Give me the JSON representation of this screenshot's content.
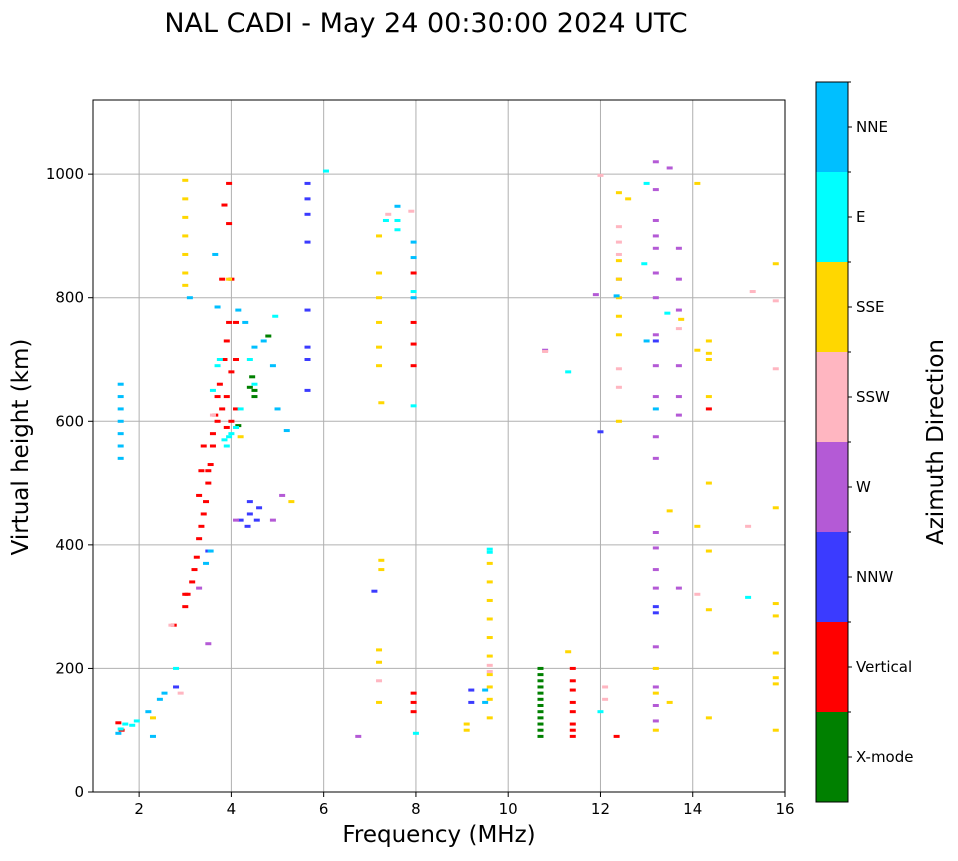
{
  "chart_data": {
    "type": "scatter",
    "title": "NAL CADI - May 24 00:30:00 2024 UTC",
    "xlabel": "Frequency (MHz)",
    "ylabel": "Virtual height (km)",
    "xlim": [
      1,
      16
    ],
    "ylim": [
      0,
      1120
    ],
    "xticks": [
      2,
      4,
      6,
      8,
      10,
      12,
      14,
      16
    ],
    "yticks": [
      0,
      200,
      400,
      600,
      800,
      1000
    ],
    "grid": true,
    "colorbar": {
      "label": "Azimuth Direction",
      "categories": [
        {
          "name": "X-mode",
          "color": "#008000"
        },
        {
          "name": "Vertical",
          "color": "#ff0000"
        },
        {
          "name": "NNW",
          "color": "#3b3bff"
        },
        {
          "name": "W",
          "color": "#b45ad6"
        },
        {
          "name": "SSW",
          "color": "#ffb6c1"
        },
        {
          "name": "SSE",
          "color": "#ffd700"
        },
        {
          "name": "E",
          "color": "#00ffff"
        },
        {
          "name": "NNE",
          "color": "#00bfff"
        }
      ]
    },
    "series": [
      {
        "name": "X-mode",
        "points": [
          [
            10.7,
            90
          ],
          [
            10.7,
            100
          ],
          [
            10.7,
            110
          ],
          [
            10.7,
            120
          ],
          [
            10.7,
            130
          ],
          [
            10.7,
            140
          ],
          [
            10.7,
            150
          ],
          [
            10.7,
            160
          ],
          [
            10.7,
            170
          ],
          [
            10.7,
            180
          ],
          [
            10.7,
            190
          ],
          [
            10.7,
            200
          ],
          [
            4.15,
            593
          ],
          [
            4.5,
            650
          ],
          [
            4.45,
            672
          ],
          [
            4.4,
            655
          ],
          [
            4.8,
            738
          ],
          [
            4.5,
            640
          ]
        ]
      },
      {
        "name": "Vertical",
        "points": [
          [
            1.55,
            112
          ],
          [
            1.62,
            100
          ],
          [
            3.0,
            300
          ],
          [
            3.0,
            320
          ],
          [
            3.15,
            340
          ],
          [
            3.2,
            360
          ],
          [
            3.25,
            380
          ],
          [
            3.3,
            410
          ],
          [
            3.35,
            430
          ],
          [
            3.4,
            450
          ],
          [
            3.45,
            470
          ],
          [
            3.5,
            500
          ],
          [
            3.55,
            530
          ],
          [
            3.6,
            560
          ],
          [
            3.7,
            600
          ],
          [
            3.8,
            620
          ],
          [
            3.9,
            640
          ],
          [
            4.0,
            680
          ],
          [
            4.1,
            700
          ],
          [
            3.7,
            640
          ],
          [
            3.75,
            660
          ],
          [
            3.85,
            700
          ],
          [
            3.9,
            730
          ],
          [
            3.95,
            760
          ],
          [
            4.1,
            760
          ],
          [
            3.8,
            830
          ],
          [
            4.0,
            830
          ],
          [
            3.95,
            985
          ],
          [
            3.95,
            920
          ],
          [
            3.85,
            950
          ],
          [
            3.3,
            480
          ],
          [
            3.35,
            520
          ],
          [
            3.4,
            560
          ],
          [
            3.6,
            580
          ],
          [
            3.65,
            610
          ],
          [
            4.0,
            600
          ],
          [
            4.1,
            620
          ],
          [
            3.9,
            590
          ],
          [
            7.95,
            130
          ],
          [
            7.95,
            145
          ],
          [
            7.95,
            160
          ],
          [
            7.95,
            690
          ],
          [
            7.95,
            760
          ],
          [
            7.95,
            840
          ],
          [
            7.95,
            725
          ],
          [
            11.4,
            90
          ],
          [
            11.4,
            100
          ],
          [
            11.4,
            110
          ],
          [
            11.4,
            130
          ],
          [
            11.4,
            145
          ],
          [
            11.4,
            165
          ],
          [
            11.4,
            180
          ],
          [
            11.4,
            200
          ],
          [
            12.35,
            90
          ],
          [
            14.35,
            620
          ],
          [
            2.75,
            270
          ],
          [
            3.05,
            320
          ],
          [
            3.5,
            520
          ]
        ]
      },
      {
        "name": "NNW",
        "points": [
          [
            5.65,
            650
          ],
          [
            5.65,
            700
          ],
          [
            5.65,
            720
          ],
          [
            5.65,
            780
          ],
          [
            5.65,
            890
          ],
          [
            5.65,
            935
          ],
          [
            5.65,
            960
          ],
          [
            5.65,
            985
          ],
          [
            4.4,
            450
          ],
          [
            4.4,
            470
          ],
          [
            4.2,
            440
          ],
          [
            4.6,
            460
          ],
          [
            4.55,
            440
          ],
          [
            4.35,
            430
          ],
          [
            9.2,
            145
          ],
          [
            9.2,
            165
          ],
          [
            12.0,
            583
          ],
          [
            13.2,
            730
          ],
          [
            13.2,
            290
          ],
          [
            13.2,
            300
          ],
          [
            3.5,
            390
          ],
          [
            7.1,
            325
          ],
          [
            2.8,
            170
          ]
        ]
      },
      {
        "name": "W",
        "points": [
          [
            3.5,
            240
          ],
          [
            3.3,
            330
          ],
          [
            4.1,
            440
          ],
          [
            4.9,
            440
          ],
          [
            5.1,
            480
          ],
          [
            6.75,
            90
          ],
          [
            11.9,
            805
          ],
          [
            13.2,
            420
          ],
          [
            13.2,
            395
          ],
          [
            13.2,
            360
          ],
          [
            13.2,
            330
          ],
          [
            13.2,
            235
          ],
          [
            13.2,
            170
          ],
          [
            13.2,
            140
          ],
          [
            13.2,
            115
          ],
          [
            13.2,
            575
          ],
          [
            13.2,
            540
          ],
          [
            13.2,
            640
          ],
          [
            13.2,
            690
          ],
          [
            13.2,
            740
          ],
          [
            13.2,
            800
          ],
          [
            13.2,
            840
          ],
          [
            13.2,
            880
          ],
          [
            13.2,
            900
          ],
          [
            13.2,
            925
          ],
          [
            13.2,
            975
          ],
          [
            13.2,
            1020
          ],
          [
            13.5,
            1010
          ],
          [
            13.7,
            880
          ],
          [
            13.7,
            830
          ],
          [
            13.7,
            780
          ],
          [
            13.7,
            690
          ],
          [
            13.7,
            640
          ],
          [
            13.7,
            610
          ],
          [
            13.7,
            330
          ],
          [
            10.8,
            715
          ],
          [
            12.4,
            830
          ]
        ]
      },
      {
        "name": "SSW",
        "points": [
          [
            2.7,
            270
          ],
          [
            2.9,
            160
          ],
          [
            3.6,
            610
          ],
          [
            7.9,
            940
          ],
          [
            7.4,
            935
          ],
          [
            10.8,
            713
          ],
          [
            12.4,
            870
          ],
          [
            12.4,
            890
          ],
          [
            12.4,
            915
          ],
          [
            12.4,
            655
          ],
          [
            12.4,
            685
          ],
          [
            12.1,
            150
          ],
          [
            12.1,
            170
          ],
          [
            13.7,
            750
          ],
          [
            14.1,
            320
          ],
          [
            15.2,
            430
          ],
          [
            15.3,
            810
          ],
          [
            15.8,
            795
          ],
          [
            15.8,
            685
          ],
          [
            12.0,
            998
          ],
          [
            9.6,
            195
          ],
          [
            9.6,
            205
          ],
          [
            7.2,
            180
          ]
        ]
      },
      {
        "name": "SSE",
        "points": [
          [
            3.0,
            840
          ],
          [
            3.0,
            870
          ],
          [
            3.0,
            900
          ],
          [
            3.0,
            930
          ],
          [
            3.0,
            960
          ],
          [
            3.0,
            990
          ],
          [
            3.0,
            820
          ],
          [
            7.2,
            690
          ],
          [
            7.2,
            720
          ],
          [
            7.2,
            760
          ],
          [
            7.2,
            800
          ],
          [
            7.2,
            840
          ],
          [
            7.2,
            900
          ],
          [
            7.25,
            630
          ],
          [
            7.25,
            375
          ],
          [
            7.25,
            360
          ],
          [
            7.2,
            230
          ],
          [
            7.2,
            210
          ],
          [
            7.2,
            145
          ],
          [
            9.1,
            110
          ],
          [
            9.1,
            100
          ],
          [
            9.6,
            150
          ],
          [
            9.6,
            170
          ],
          [
            9.6,
            190
          ],
          [
            9.6,
            220
          ],
          [
            9.6,
            250
          ],
          [
            9.6,
            280
          ],
          [
            9.6,
            310
          ],
          [
            9.6,
            340
          ],
          [
            9.6,
            370
          ],
          [
            9.6,
            120
          ],
          [
            11.3,
            227
          ],
          [
            12.4,
            970
          ],
          [
            12.4,
            860
          ],
          [
            12.4,
            830
          ],
          [
            12.4,
            800
          ],
          [
            12.4,
            770
          ],
          [
            12.4,
            740
          ],
          [
            12.4,
            600
          ],
          [
            12.6,
            960
          ],
          [
            13.2,
            200
          ],
          [
            13.2,
            160
          ],
          [
            13.2,
            100
          ],
          [
            13.5,
            455
          ],
          [
            13.5,
            145
          ],
          [
            14.1,
            985
          ],
          [
            14.1,
            715
          ],
          [
            14.1,
            430
          ],
          [
            14.35,
            730
          ],
          [
            14.35,
            710
          ],
          [
            14.35,
            700
          ],
          [
            14.35,
            640
          ],
          [
            14.35,
            500
          ],
          [
            14.35,
            390
          ],
          [
            14.35,
            295
          ],
          [
            14.35,
            120
          ],
          [
            15.8,
            855
          ],
          [
            15.8,
            460
          ],
          [
            15.8,
            305
          ],
          [
            15.8,
            285
          ],
          [
            15.8,
            225
          ],
          [
            15.8,
            185
          ],
          [
            15.8,
            175
          ],
          [
            15.8,
            100
          ],
          [
            13.75,
            765
          ],
          [
            2.3,
            120
          ],
          [
            5.3,
            470
          ],
          [
            4.2,
            575
          ],
          [
            3.95,
            830
          ]
        ]
      },
      {
        "name": "E",
        "points": [
          [
            1.6,
            102
          ],
          [
            1.7,
            110
          ],
          [
            1.85,
            108
          ],
          [
            1.95,
            115
          ],
          [
            3.9,
            560
          ],
          [
            3.95,
            575
          ],
          [
            4.0,
            580
          ],
          [
            3.85,
            570
          ],
          [
            4.1,
            590
          ],
          [
            4.2,
            620
          ],
          [
            4.4,
            700
          ],
          [
            4.5,
            660
          ],
          [
            3.6,
            650
          ],
          [
            3.7,
            690
          ],
          [
            3.75,
            700
          ],
          [
            9.6,
            393
          ],
          [
            9.6,
            388
          ],
          [
            7.35,
            925
          ],
          [
            7.6,
            925
          ],
          [
            7.6,
            910
          ],
          [
            7.95,
            625
          ],
          [
            7.95,
            810
          ],
          [
            8.0,
            95
          ],
          [
            11.3,
            680
          ],
          [
            12.0,
            130
          ],
          [
            12.95,
            855
          ],
          [
            13.0,
            985
          ],
          [
            13.45,
            775
          ],
          [
            15.2,
            315
          ],
          [
            6.05,
            1005
          ],
          [
            2.8,
            200
          ],
          [
            4.95,
            770
          ]
        ]
      },
      {
        "name": "NNE",
        "points": [
          [
            1.6,
            540
          ],
          [
            1.6,
            560
          ],
          [
            1.6,
            580
          ],
          [
            1.6,
            600
          ],
          [
            1.6,
            620
          ],
          [
            1.6,
            640
          ],
          [
            1.6,
            660
          ],
          [
            2.3,
            90
          ],
          [
            2.45,
            150
          ],
          [
            2.55,
            160
          ],
          [
            3.1,
            800
          ],
          [
            3.45,
            370
          ],
          [
            3.55,
            390
          ],
          [
            3.65,
            870
          ],
          [
            3.7,
            785
          ],
          [
            4.15,
            780
          ],
          [
            4.3,
            760
          ],
          [
            4.5,
            720
          ],
          [
            4.7,
            730
          ],
          [
            4.9,
            690
          ],
          [
            5.0,
            620
          ],
          [
            5.2,
            585
          ],
          [
            7.6,
            948
          ],
          [
            7.95,
            890
          ],
          [
            7.95,
            865
          ],
          [
            7.95,
            800
          ],
          [
            12.35,
            803
          ],
          [
            13.0,
            730
          ],
          [
            13.2,
            620
          ],
          [
            9.5,
            165
          ],
          [
            9.5,
            145
          ],
          [
            1.55,
            95
          ],
          [
            2.2,
            130
          ]
        ]
      }
    ]
  }
}
